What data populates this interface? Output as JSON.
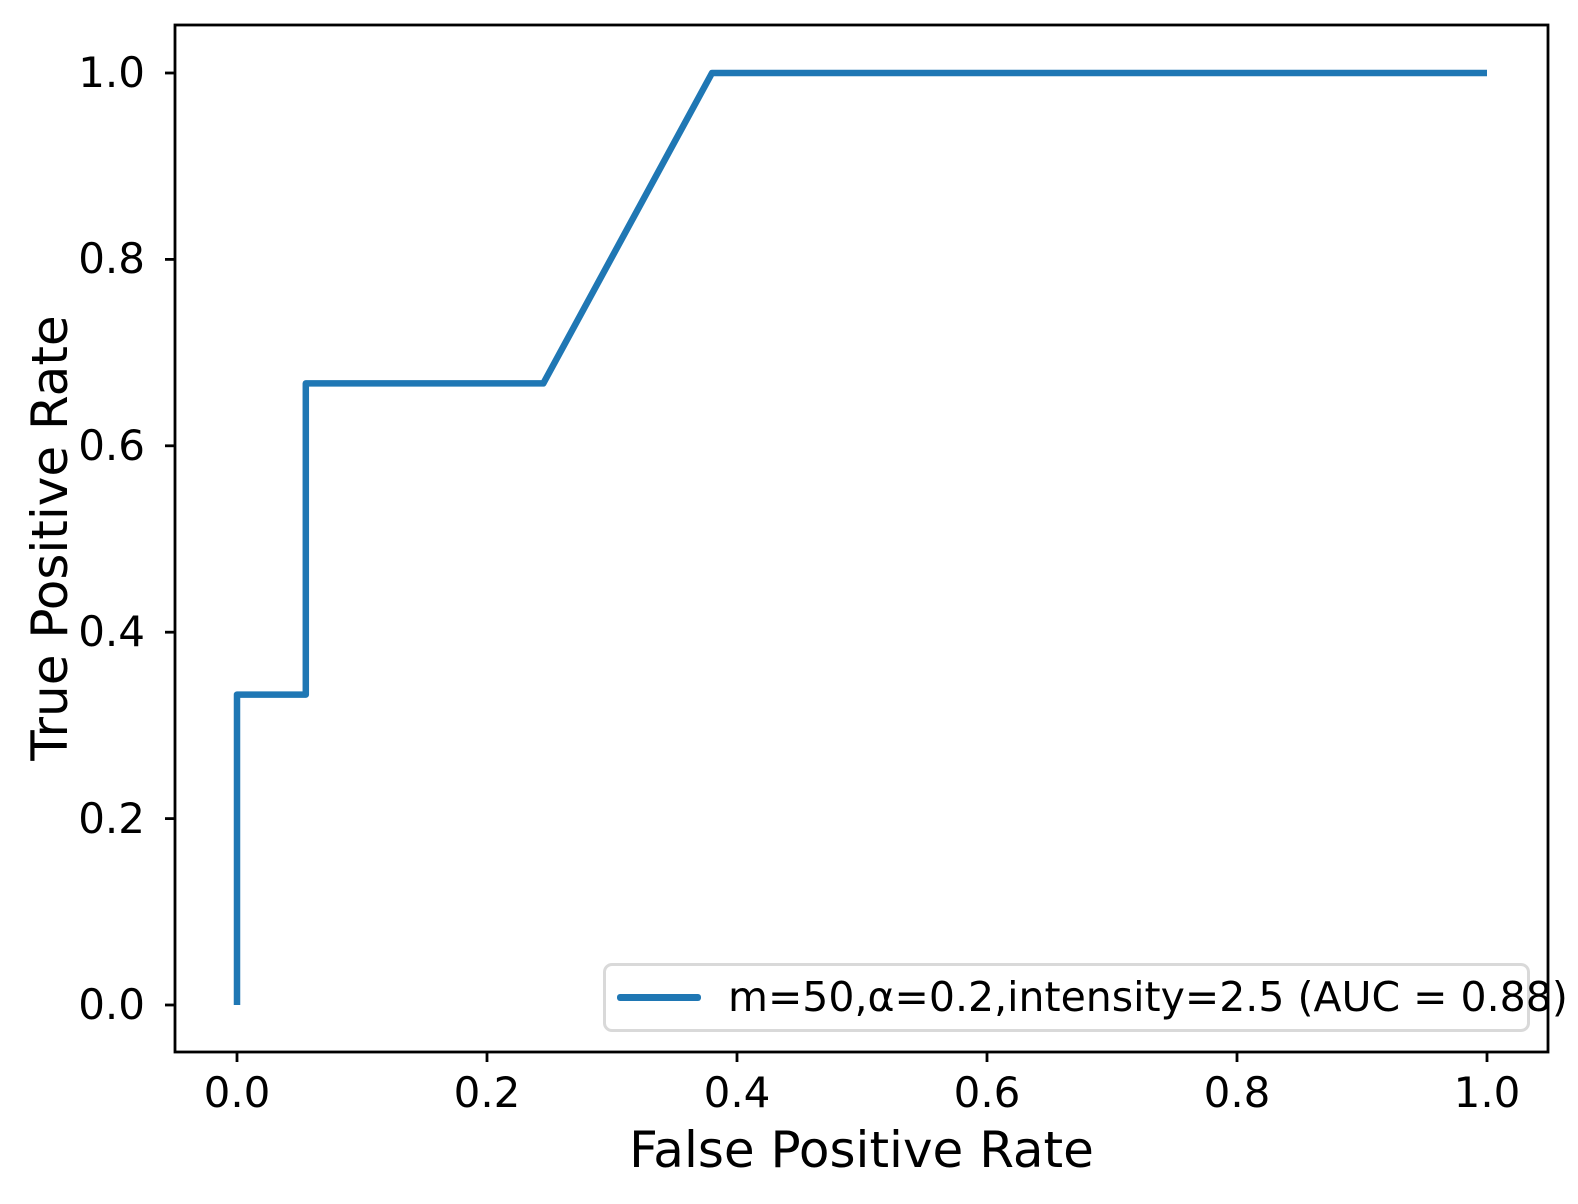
{
  "figure": {
    "background_color": "#ffffff",
    "spine_color": "#000000",
    "text_color": "#000000"
  },
  "legend": {
    "label": "m=50,α=0.2,intensity=2.5 (AUC = 0.88)",
    "line_color": "#1f77b4",
    "position": "lower right"
  },
  "chart_data": {
    "type": "line",
    "title": "",
    "xlabel": "False Positive Rate",
    "ylabel": "True Positive Rate",
    "xlim": [
      -0.05,
      1.05
    ],
    "ylim": [
      -0.05,
      1.05
    ],
    "grid": false,
    "x_tick_values": [
      0.0,
      0.2,
      0.4,
      0.6,
      0.8,
      1.0
    ],
    "y_tick_values": [
      0.0,
      0.2,
      0.4,
      0.6,
      0.8,
      1.0
    ],
    "x_tick_labels": [
      "0.0",
      "0.2",
      "0.4",
      "0.6",
      "0.8",
      "1.0"
    ],
    "y_tick_labels": [
      "0.0",
      "0.2",
      "0.4",
      "0.6",
      "0.8",
      "1.0"
    ],
    "legend_position": "lower right",
    "series": [
      {
        "name": "m=50,α=0.2,intensity=2.5 (AUC = 0.88)",
        "color": "#1f77b4",
        "auc": 0.88,
        "x": [
          0.0,
          0.0,
          0.055,
          0.055,
          0.245,
          0.38,
          1.0
        ],
        "y": [
          0.0,
          0.333,
          0.333,
          0.667,
          0.667,
          1.0,
          1.0
        ]
      }
    ]
  }
}
